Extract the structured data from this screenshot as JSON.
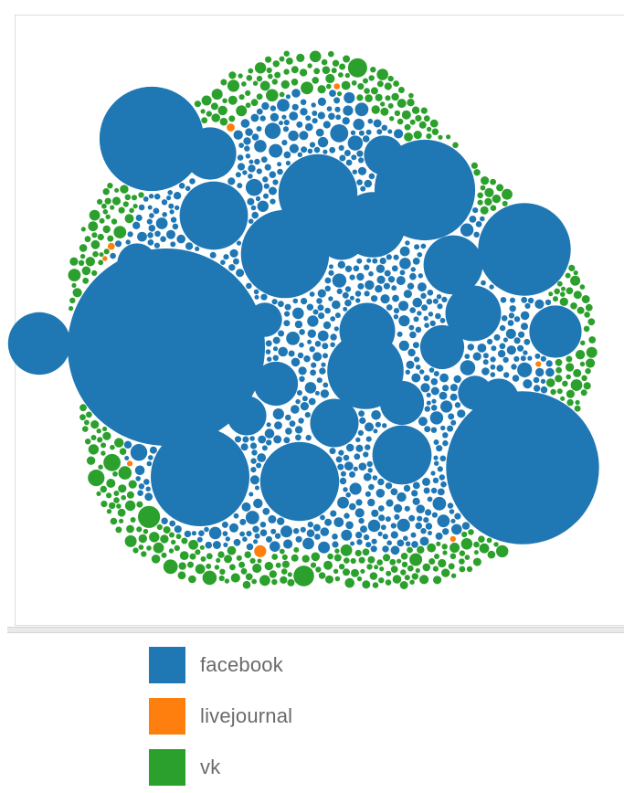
{
  "chart_data": {
    "type": "packed-bubble",
    "title": "",
    "legend": {
      "position": "bottom",
      "entries": [
        {
          "name": "facebook",
          "color": "#1f77b4"
        },
        {
          "name": "livejournal",
          "color": "#ff7f0e"
        },
        {
          "name": "vk",
          "color": "#2ca02c"
        }
      ]
    },
    "series": [
      {
        "name": "facebook",
        "color": "#1f77b4",
        "large_values": [
          100,
          60,
          28,
          26,
          25,
          22,
          20,
          16,
          16,
          15,
          12,
          11,
          10,
          9,
          9,
          8,
          8,
          7,
          7,
          6,
          6,
          5,
          5,
          5,
          4,
          4,
          4,
          4,
          3,
          3
        ],
        "approx_small_count": 1100
      },
      {
        "name": "livejournal",
        "color": "#ff7f0e",
        "approx_small_count": 18
      },
      {
        "name": "vk",
        "color": "#2ca02c",
        "approx_small_count": 900
      }
    ]
  }
}
